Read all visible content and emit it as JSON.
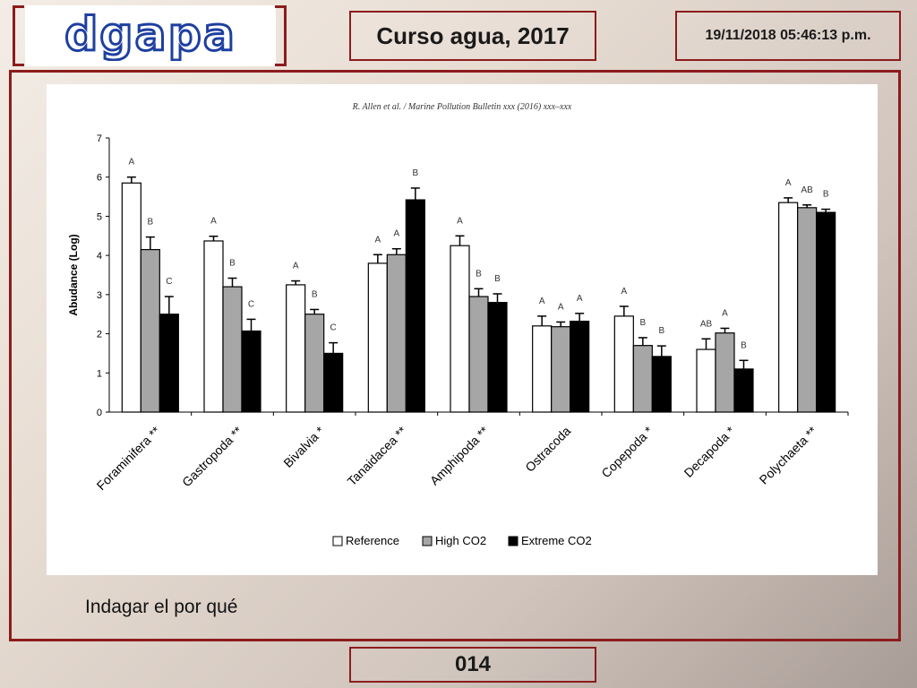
{
  "header": {
    "logo_text": "dgapa",
    "title": "Curso agua, 2017",
    "datetime": "19/11/2018 05:46:13 p.m."
  },
  "caption": "Indagar el por qué",
  "page_number": "014",
  "colors": {
    "frame": "#8c1c1c",
    "logo": "#1e3fa0",
    "reference": "#ffffff",
    "high_co2": "#a6a6a6",
    "extreme_co2": "#000000"
  },
  "chart_data": {
    "type": "bar",
    "source": "R. Allen et al. / Marine Pollution Bulletin xxx (2016) xxx–xxx",
    "ylabel": "Abudance (Log)",
    "xlabel": "",
    "ylim": [
      0,
      7
    ],
    "yticks": [
      "0",
      "1",
      "2",
      "3",
      "4",
      "5",
      "6",
      "7"
    ],
    "grid": false,
    "legend_position": "bottom-center",
    "categories": [
      "Foraminifera **",
      "Gastropoda **",
      "Bivalvia *",
      "Tanaidacea **",
      "Amphipoda **",
      "Ostracoda",
      "Copepoda *",
      "Decapoda *",
      "Polychaeta **"
    ],
    "series": [
      {
        "name": "Reference",
        "color": "#ffffff",
        "values": [
          5.85,
          4.37,
          3.25,
          3.8,
          4.25,
          2.2,
          2.45,
          1.6,
          5.35
        ],
        "errors": [
          0.15,
          0.12,
          0.1,
          0.22,
          0.25,
          0.25,
          0.25,
          0.27,
          0.12
        ],
        "letters": [
          "A",
          "A",
          "A",
          "A",
          "A",
          "A",
          "A",
          "AB",
          "A"
        ]
      },
      {
        "name": "High CO2",
        "color": "#a6a6a6",
        "values": [
          4.15,
          3.2,
          2.5,
          4.02,
          2.95,
          2.18,
          1.7,
          2.02,
          5.22
        ],
        "errors": [
          0.32,
          0.22,
          0.12,
          0.15,
          0.2,
          0.12,
          0.2,
          0.12,
          0.07
        ],
        "letters": [
          "B",
          "B",
          "B",
          "A",
          "B",
          "A",
          "B",
          "A",
          "AB"
        ]
      },
      {
        "name": "Extreme CO2",
        "color": "#000000",
        "values": [
          2.5,
          2.07,
          1.5,
          5.42,
          2.8,
          2.32,
          1.42,
          1.1,
          5.1
        ],
        "errors": [
          0.45,
          0.3,
          0.27,
          0.3,
          0.22,
          0.2,
          0.27,
          0.22,
          0.08
        ],
        "letters": [
          "C",
          "C",
          "C",
          "B",
          "B",
          "A",
          "B",
          "B",
          "B"
        ]
      }
    ]
  }
}
